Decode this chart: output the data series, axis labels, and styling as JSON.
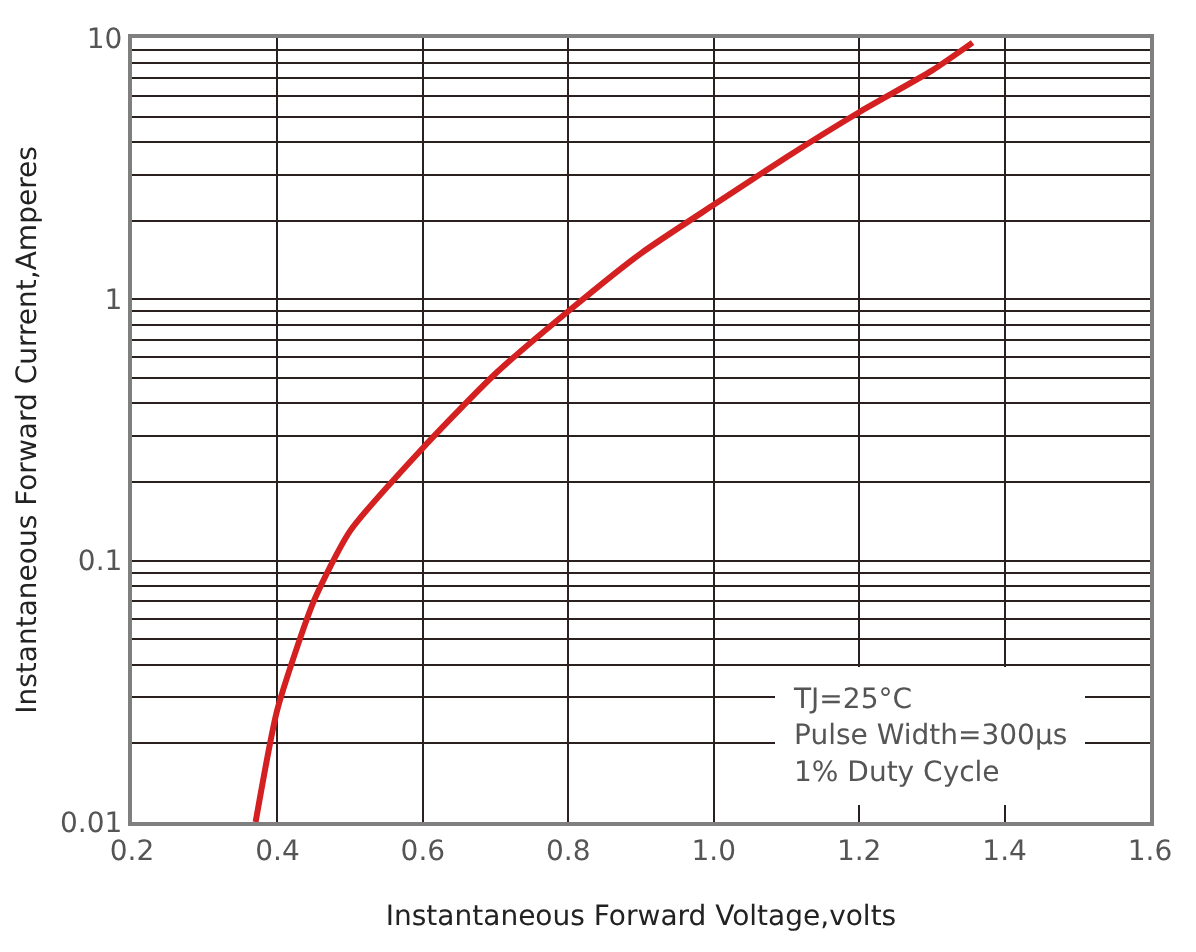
{
  "chart_data": {
    "type": "line",
    "xlabel": "Instantaneous Forward Voltage,volts",
    "ylabel": "Instantaneous Forward Current,Amperes",
    "x": [
      0.37,
      0.4,
      0.45,
      0.5,
      0.6,
      0.7,
      0.8,
      0.9,
      1.0,
      1.1,
      1.2,
      1.3,
      1.356
    ],
    "series": [
      {
        "color": "#d42020",
        "values": [
          0.01,
          0.027,
          0.07,
          0.13,
          0.27,
          0.52,
          0.9,
          1.5,
          2.3,
          3.5,
          5.2,
          7.5,
          9.6
        ]
      }
    ],
    "log": "y",
    "xlim": [
      0.2,
      1.6
    ],
    "xticks": [
      {
        "value": 0.2,
        "label": "0.2"
      },
      {
        "value": 0.4,
        "label": "0.4"
      },
      {
        "value": 0.6,
        "label": "0.6"
      },
      {
        "value": 0.8,
        "label": "0.8"
      },
      {
        "value": 1.0,
        "label": "1.0"
      },
      {
        "value": 1.2,
        "label": "1.2"
      },
      {
        "value": 1.4,
        "label": "1.4"
      },
      {
        "value": 1.6,
        "label": "1.6"
      }
    ],
    "ylim": [
      0.01,
      10
    ],
    "yticks": [
      0.01,
      {
        "value": 0.02,
        "label": null
      },
      {
        "value": 0.03,
        "label": null
      },
      {
        "value": 0.04,
        "label": null
      },
      {
        "value": 0.05,
        "label": null
      },
      {
        "value": 0.06,
        "label": null
      },
      {
        "value": 0.07,
        "label": null
      },
      {
        "value": 0.08,
        "label": null
      },
      {
        "value": 0.09,
        "label": null
      },
      0.1,
      {
        "value": 0.2,
        "label": null
      },
      {
        "value": 0.3,
        "label": null
      },
      {
        "value": 0.4,
        "label": null
      },
      {
        "value": 0.5,
        "label": null
      },
      {
        "value": 0.6,
        "label": null
      },
      {
        "value": 0.7,
        "label": null
      },
      {
        "value": 0.8,
        "label": null
      },
      {
        "value": 0.9,
        "label": null
      },
      1,
      {
        "value": 2,
        "label": null
      },
      {
        "value": 3,
        "label": null
      },
      {
        "value": 4,
        "label": null
      },
      {
        "value": 5,
        "label": null
      },
      {
        "value": 6,
        "label": null
      },
      {
        "value": 7,
        "label": null
      },
      {
        "value": 8,
        "label": null
      },
      {
        "value": 9,
        "label": null
      },
      10
    ],
    "grid": true,
    "annotations": [
      "TJ=25°C\nPulse Width=300μs\n1% Duty Cycle"
    ]
  }
}
